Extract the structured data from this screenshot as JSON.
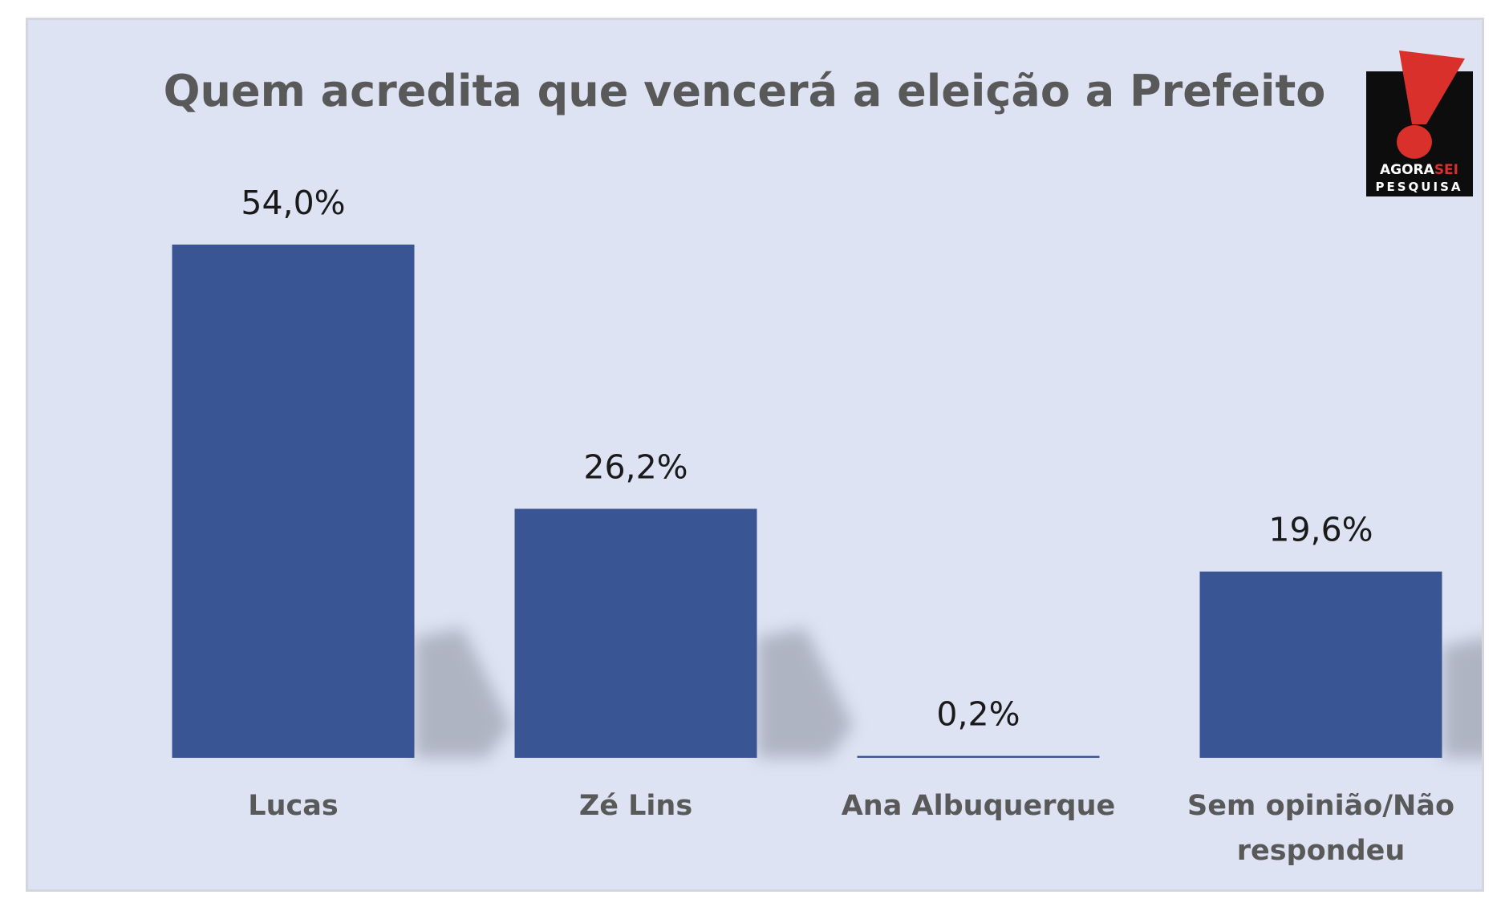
{
  "chart_data": {
    "type": "bar",
    "title": "Quem acredita que vencerá a eleição a Prefeito",
    "categories": [
      "Lucas",
      "Zé Lins",
      "Ana Albuquerque",
      "Sem opinião/Não respondeu"
    ],
    "category_lines": [
      [
        "Lucas"
      ],
      [
        "Zé Lins"
      ],
      [
        "Ana Albuquerque"
      ],
      [
        "Sem opinião/Não",
        "respondeu"
      ]
    ],
    "values": [
      54.0,
      26.2,
      0.2,
      19.6
    ],
    "value_labels": [
      "54,0%",
      "26,2%",
      "0,2%",
      "19,6%"
    ],
    "ylim": [
      0,
      54
    ],
    "grid": false,
    "legend": "none",
    "bar_color": "#3a5594"
  },
  "logo": {
    "name": "exclamation-logo-icon",
    "line1_a": "AGORA",
    "line1_b": "SEI",
    "line2": "PESQUISA",
    "colors": {
      "bg": "#0d0d0d",
      "accent": "#d9302b",
      "text": "#ffffff"
    }
  }
}
